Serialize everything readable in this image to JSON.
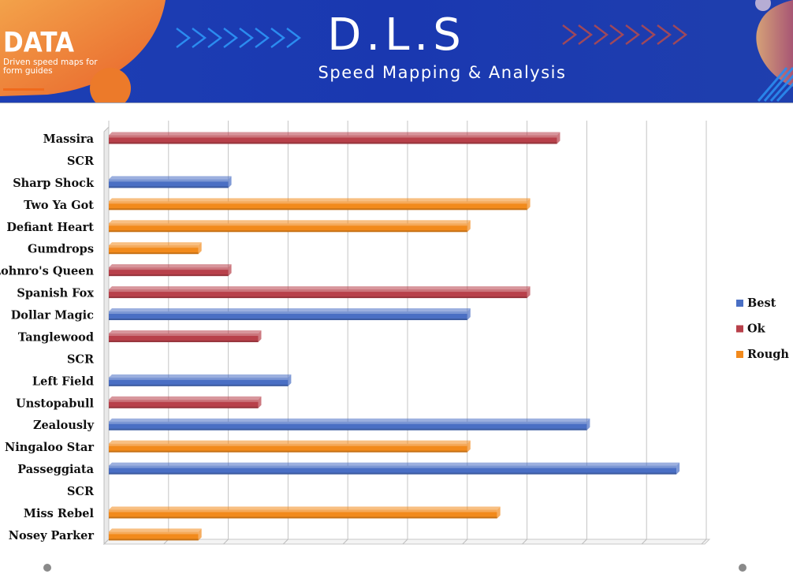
{
  "banner": {
    "brand_word": "DATA",
    "brand_tagline": "Driven speed maps for form guides",
    "title": "D.L.S",
    "subtitle": "Speed Mapping & Analysis"
  },
  "colors": {
    "Best": "#4a6fc4",
    "Ok": "#b8404a",
    "Rough": "#f28a1c",
    "banner_bg": "#1d3fb4",
    "brand_orange": "#f06a1c"
  },
  "chart_data": {
    "type": "bar",
    "orientation": "horizontal",
    "style": "3d",
    "categories": [
      "Massira",
      "SCR",
      "Sharp Shock",
      "Two Ya Got",
      "Defiant Heart",
      "Gumdrops",
      "Lohnro's Queen",
      "Spanish Fox",
      "Dollar Magic",
      "Tanglewood",
      "SCR",
      "Left Field",
      "Unstopabull",
      "Zealously",
      "Ningaloo Star",
      "Passeggiata",
      "SCR",
      "Miss Rebel",
      "Nosey Parker"
    ],
    "values": [
      7.5,
      0,
      2,
      7,
      6,
      1.5,
      2,
      7,
      6,
      2.5,
      0,
      3,
      2.5,
      8,
      6,
      9.5,
      0,
      6.5,
      1.5
    ],
    "series_of_bar": [
      "Ok",
      null,
      "Best",
      "Rough",
      "Rough",
      "Rough",
      "Ok",
      "Ok",
      "Best",
      "Ok",
      null,
      "Best",
      "Ok",
      "Best",
      "Rough",
      "Best",
      null,
      "Rough",
      "Rough"
    ],
    "series": [
      {
        "name": "Best"
      },
      {
        "name": "Ok"
      },
      {
        "name": "Rough"
      }
    ],
    "xlim": [
      0,
      10
    ],
    "x_gridline_step": 1,
    "x_tick_labels_shown": false,
    "grid": true,
    "legend": "right"
  }
}
